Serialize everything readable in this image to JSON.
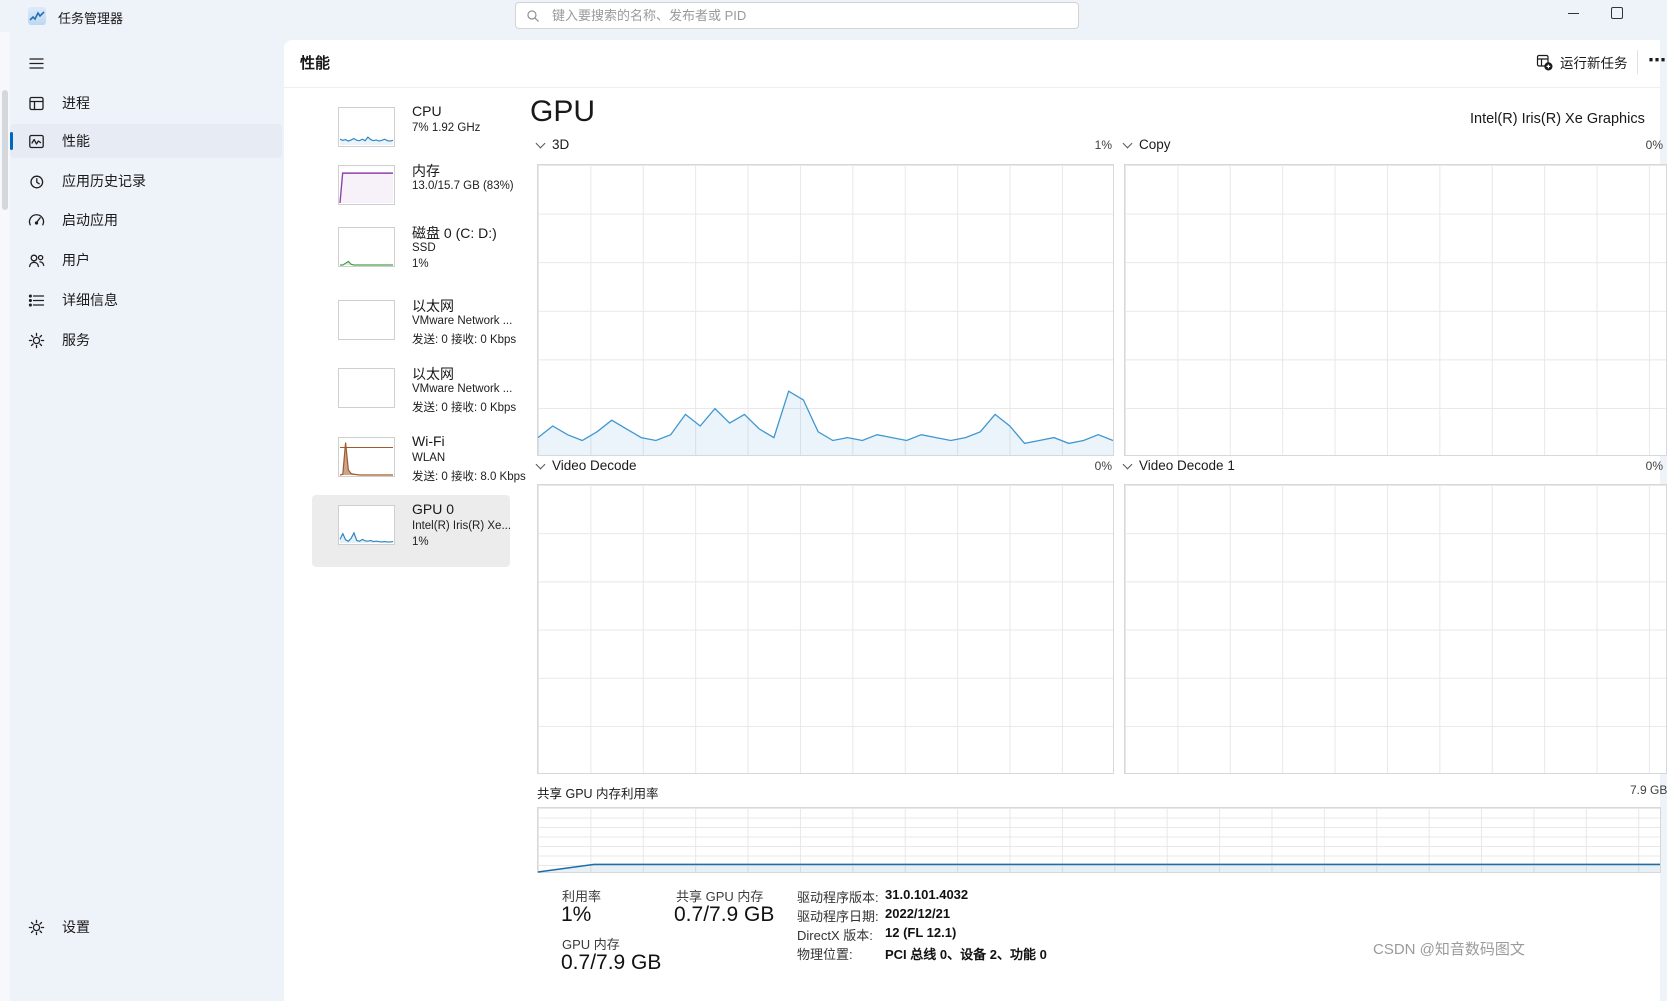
{
  "titlebar": {
    "app_title": "任务管理器",
    "search_placeholder": "键入要搜索的名称、发布者或 PID"
  },
  "sidebar": {
    "items": [
      {
        "label": "进程"
      },
      {
        "label": "性能",
        "active": true
      },
      {
        "label": "应用历史记录"
      },
      {
        "label": "启动应用"
      },
      {
        "label": "用户"
      },
      {
        "label": "详细信息"
      },
      {
        "label": "服务"
      }
    ],
    "settings_label": "设置"
  },
  "header": {
    "title": "性能",
    "run_new_task": "运行新任务",
    "more": "⋯"
  },
  "perf_list": [
    {
      "name": "CPU",
      "line1": "7% 1.92 GHz",
      "line2": ""
    },
    {
      "name": "内存",
      "line1": "13.0/15.7 GB (83%)",
      "line2": ""
    },
    {
      "name": "磁盘 0 (C: D:)",
      "line1": "SSD",
      "line2": "1%"
    },
    {
      "name": "以太网",
      "line1": "VMware Network ...",
      "line2": "发送: 0 接收: 0 Kbps"
    },
    {
      "name": "以太网",
      "line1": "VMware Network ...",
      "line2": "发送: 0 接收: 0 Kbps"
    },
    {
      "name": "Wi-Fi",
      "line1": "WLAN",
      "line2": "发送: 0 接收: 8.0 Kbps"
    },
    {
      "name": "GPU 0",
      "line1": "Intel(R) Iris(R) Xe...",
      "line2": "1%"
    }
  ],
  "gpu": {
    "title": "GPU",
    "device_name": "Intel(R) Iris(R) Xe Graphics",
    "engines": [
      {
        "label": "3D",
        "value": "1%"
      },
      {
        "label": "Copy",
        "value": "0%"
      },
      {
        "label": "Video Decode",
        "value": "0%"
      },
      {
        "label": "Video Decode 1",
        "value": "0%"
      }
    ],
    "shared_memory": {
      "label": "共享 GPU 内存利用率",
      "scale_max": "7.9 GB"
    },
    "stats": {
      "utilization_label": "利用率",
      "utilization": "1%",
      "shared_label": "共享 GPU 内存",
      "shared": "0.7/7.9 GB",
      "gpu_mem_label": "GPU 内存",
      "gpu_mem": "0.7/7.9 GB",
      "driver_version_label": "驱动程序版本:",
      "driver_version": "31.0.101.4032",
      "driver_date_label": "驱动程序日期:",
      "driver_date": "2022/12/21",
      "directx_label": "DirectX 版本:",
      "directx": "12 (FL 12.1)",
      "location_label": "物理位置:",
      "location": "PCI 总线 0、设备 2、功能 0"
    }
  },
  "watermark": "CSDN @知音数码图文",
  "colors": {
    "accent": "#0067c0",
    "chart_blue": "#3f97d0",
    "memory_purple": "#9141ac",
    "wifi_brown": "#a05a2c",
    "disk_green": "#4a9e4a",
    "shared_line_blue": "#1c6ea8",
    "window_bg": "#eef2f9"
  },
  "sparks": {
    "cpu_thumb": {
      "v": [
        0.16,
        0.13,
        0.15,
        0.11,
        0.14,
        0.18,
        0.13,
        0.12,
        0.16,
        0.12,
        0.22,
        0.15,
        0.12,
        0.14,
        0.11,
        0.13,
        0.16,
        0.12,
        0.11,
        0.13
      ],
      "stroke": "#2f87c3",
      "fill": "rgba(47,135,195,0.10)",
      "lw": 1.2
    },
    "mem_thumb": {
      "v": [
        0,
        0.83,
        0.83,
        0.83,
        0.83,
        0.83,
        0.83,
        0.83,
        0.83,
        0.83,
        0.83,
        0.83,
        0.83,
        0.83,
        0.83,
        0.83,
        0.83,
        0.83,
        0.83,
        0.83,
        0.83
      ],
      "stroke": "#9141ac",
      "fill": "rgba(145,65,172,0.07)",
      "lw": 1.4
    },
    "disk_thumb": {
      "v": [
        0,
        0,
        0.05,
        0.1,
        0.02,
        0,
        0,
        0,
        0,
        0,
        0,
        0,
        0,
        0,
        0,
        0,
        0,
        0,
        0,
        0
      ],
      "stroke": "#4a9e4a",
      "fill": "rgba(74,158,74,0.18)",
      "lw": 1.2
    },
    "wifi_thumb": {
      "v": [
        0,
        0.02,
        0.9,
        0.14,
        0.04,
        0.02,
        0.01,
        0,
        0,
        0,
        0,
        0,
        0,
        0,
        0,
        0,
        0,
        0,
        0,
        0
      ],
      "stroke": "#a05a2c",
      "fill": "rgba(160,90,44,0.55)",
      "lw": 1.2
    },
    "gpu_thumb": {
      "v": [
        0.1,
        0.26,
        0.09,
        0.05,
        0.13,
        0.28,
        0.07,
        0.05,
        0.1,
        0.06,
        0.05,
        0.07,
        0.04,
        0.05,
        0.04,
        0.03,
        0.04,
        0.03,
        0.03,
        0.04
      ],
      "stroke": "#2f87c3",
      "fill": "rgba(47,135,195,0.12)",
      "lw": 1.2
    },
    "gpu_3d": {
      "v": [
        0.06,
        0.1,
        0.07,
        0.05,
        0.08,
        0.12,
        0.09,
        0.06,
        0.05,
        0.07,
        0.14,
        0.1,
        0.16,
        0.11,
        0.14,
        0.09,
        0.06,
        0.22,
        0.19,
        0.08,
        0.05,
        0.06,
        0.05,
        0.07,
        0.06,
        0.05,
        0.07,
        0.06,
        0.05,
        0.06,
        0.08,
        0.14,
        0.1,
        0.04,
        0.05,
        0.06,
        0.04,
        0.05,
        0.07,
        0.05
      ],
      "stroke": "#3f97d0",
      "fill": "rgba(63,151,208,0.10)",
      "lw": 1.3
    },
    "shared_mem": {
      "v": [
        0,
        0.12,
        0.12,
        0.12,
        0.12,
        0.12,
        0.12,
        0.12,
        0.12,
        0.12,
        0.12,
        0.12,
        0.12,
        0.12,
        0.12,
        0.12,
        0.12,
        0.12,
        0.12,
        0.12,
        0.12
      ],
      "stroke": "#1c6ea8",
      "fill": "rgba(28,110,168,0.10)",
      "lw": 1.5
    }
  }
}
